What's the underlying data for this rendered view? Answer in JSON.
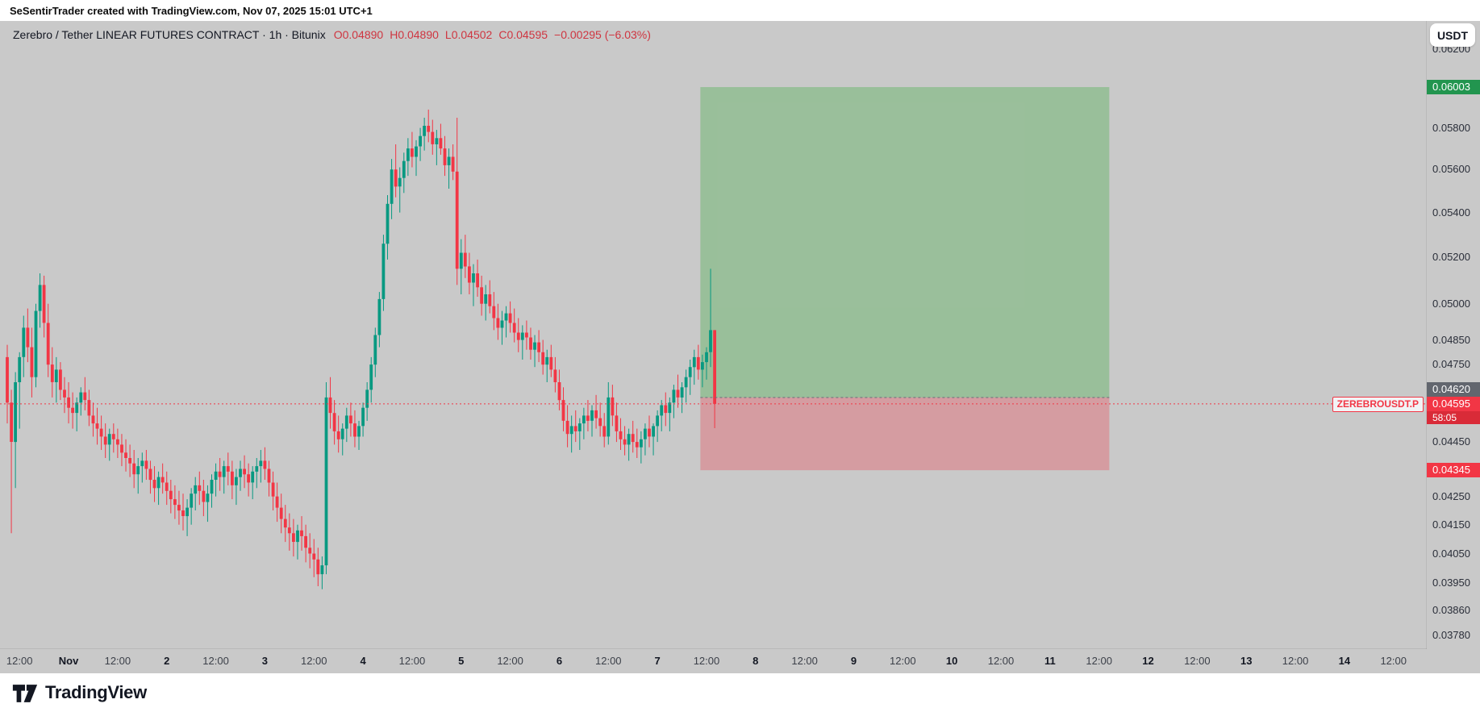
{
  "attribution": "SeSentirTrader created with TradingView.com, Nov 07, 2025 15:01 UTC+1",
  "currency_button": "USDT",
  "footer": {
    "logo_text": "TradingView"
  },
  "legend": {
    "title": "Zerebro / Tether LINEAR FUTURES CONTRACT · 1h · Bitunix",
    "open": "O0.04890",
    "high": "H0.04890",
    "low": "L0.04502",
    "close": "C0.04595",
    "change": "−0.00295 (−6.03%)"
  },
  "price_line": {
    "symbol_label": "ZEREBROUSDT.P",
    "price": 0.04595,
    "price_label": "0.04595",
    "countdown": "58:05"
  },
  "position_tool": {
    "type": "long",
    "target_price": 0.06003,
    "target_label": "0.06003",
    "entry_price": 0.0462,
    "entry_label": "0.04620",
    "stop_price": 0.04345,
    "stop_label": "0.04345",
    "start_index": 169.5,
    "end_index": 269.5
  },
  "colors": {
    "up": "#089981",
    "down": "#f23645",
    "background": "#c9c9c9",
    "profit_fill": "#4caf50",
    "loss_fill": "#f23645",
    "target_badge": "#22954f",
    "entry_badge": "#62666e",
    "stop_badge": "#f23645",
    "current_badge": "#f23645",
    "countdown_badge": "#d92b38",
    "current_line": "#f23645",
    "entry_line": "#6a6d78"
  },
  "chart_data": {
    "type": "candlestick",
    "symbol": "ZEREBROUSDT.P",
    "description": "Zerebro / Tether LINEAR FUTURES CONTRACT",
    "interval": "1h",
    "exchange": "Bitunix",
    "scale": "log",
    "price_range_visible": [
      0.0375,
      0.0625
    ],
    "price_axis_labels": [
      0.062,
      0.058,
      0.056,
      0.054,
      0.052,
      0.05,
      0.0485,
      0.0475,
      0.0445,
      0.0425,
      0.0415,
      0.0405,
      0.0395,
      0.0386,
      0.0378
    ],
    "time_axis_labels": [
      {
        "idx": 3,
        "label": "12:00"
      },
      {
        "idx": 15,
        "label": "Nov",
        "major": true
      },
      {
        "idx": 27,
        "label": "12:00"
      },
      {
        "idx": 39,
        "label": "2",
        "major": true
      },
      {
        "idx": 51,
        "label": "12:00"
      },
      {
        "idx": 63,
        "label": "3",
        "major": true
      },
      {
        "idx": 75,
        "label": "12:00"
      },
      {
        "idx": 87,
        "label": "4",
        "major": true
      },
      {
        "idx": 99,
        "label": "12:00"
      },
      {
        "idx": 111,
        "label": "5",
        "major": true
      },
      {
        "idx": 123,
        "label": "12:00"
      },
      {
        "idx": 135,
        "label": "6",
        "major": true
      },
      {
        "idx": 147,
        "label": "12:00"
      },
      {
        "idx": 159,
        "label": "7",
        "major": true
      },
      {
        "idx": 171,
        "label": "12:00"
      },
      {
        "idx": 183,
        "label": "8",
        "major": true
      },
      {
        "idx": 195,
        "label": "12:00"
      },
      {
        "idx": 207,
        "label": "9",
        "major": true
      },
      {
        "idx": 219,
        "label": "12:00"
      },
      {
        "idx": 231,
        "label": "10",
        "major": true
      },
      {
        "idx": 243,
        "label": "12:00"
      },
      {
        "idx": 255,
        "label": "11",
        "major": true
      },
      {
        "idx": 267,
        "label": "12:00"
      },
      {
        "idx": 279,
        "label": "12",
        "major": true
      },
      {
        "idx": 291,
        "label": "12:00"
      },
      {
        "idx": 303,
        "label": "13",
        "major": true
      },
      {
        "idx": 315,
        "label": "12:00"
      },
      {
        "idx": 327,
        "label": "14",
        "major": true
      },
      {
        "idx": 339,
        "label": "12:00"
      }
    ],
    "candles": [
      [
        0.0478,
        0.0483,
        0.0452,
        0.046
      ],
      [
        0.046,
        0.0465,
        0.0412,
        0.0445
      ],
      [
        0.0445,
        0.0472,
        0.0428,
        0.0468
      ],
      [
        0.0468,
        0.048,
        0.045,
        0.0478
      ],
      [
        0.0478,
        0.0495,
        0.047,
        0.049
      ],
      [
        0.049,
        0.0498,
        0.0476,
        0.0482
      ],
      [
        0.0482,
        0.049,
        0.0462,
        0.047
      ],
      [
        0.047,
        0.05,
        0.0466,
        0.0497
      ],
      [
        0.0497,
        0.0513,
        0.049,
        0.0508
      ],
      [
        0.0508,
        0.0512,
        0.0486,
        0.0492
      ],
      [
        0.0492,
        0.05,
        0.047,
        0.0475
      ],
      [
        0.0475,
        0.0482,
        0.0462,
        0.0468
      ],
      [
        0.0468,
        0.0478,
        0.046,
        0.0473
      ],
      [
        0.0473,
        0.0476,
        0.0461,
        0.0465
      ],
      [
        0.0465,
        0.047,
        0.0456,
        0.0462
      ],
      [
        0.0462,
        0.0468,
        0.0452,
        0.0458
      ],
      [
        0.0458,
        0.0464,
        0.045,
        0.0456
      ],
      [
        0.0456,
        0.0462,
        0.0449,
        0.046
      ],
      [
        0.046,
        0.0466,
        0.0455,
        0.0464
      ],
      [
        0.0464,
        0.047,
        0.0457,
        0.0461
      ],
      [
        0.0461,
        0.0465,
        0.0451,
        0.0455
      ],
      [
        0.0455,
        0.046,
        0.0447,
        0.0452
      ],
      [
        0.0452,
        0.0458,
        0.0444,
        0.045
      ],
      [
        0.045,
        0.0455,
        0.0442,
        0.0447
      ],
      [
        0.0447,
        0.0452,
        0.0439,
        0.0444
      ],
      [
        0.0444,
        0.045,
        0.0438,
        0.0448
      ],
      [
        0.0448,
        0.0452,
        0.0441,
        0.0446
      ],
      [
        0.0446,
        0.045,
        0.0439,
        0.0444
      ],
      [
        0.0444,
        0.0448,
        0.0436,
        0.0441
      ],
      [
        0.0441,
        0.0446,
        0.0434,
        0.0439
      ],
      [
        0.0439,
        0.0444,
        0.0432,
        0.0437
      ],
      [
        0.0437,
        0.0442,
        0.0428,
        0.0433
      ],
      [
        0.0433,
        0.0439,
        0.0426,
        0.0436
      ],
      [
        0.0436,
        0.0441,
        0.043,
        0.0438
      ],
      [
        0.0438,
        0.0442,
        0.0431,
        0.0435
      ],
      [
        0.0435,
        0.0438,
        0.0426,
        0.0431
      ],
      [
        0.0431,
        0.0436,
        0.0423,
        0.0428
      ],
      [
        0.0428,
        0.0434,
        0.0422,
        0.0432
      ],
      [
        0.0432,
        0.0437,
        0.0426,
        0.043
      ],
      [
        0.043,
        0.0434,
        0.0422,
        0.0427
      ],
      [
        0.0427,
        0.0431,
        0.0419,
        0.0424
      ],
      [
        0.0424,
        0.0429,
        0.0417,
        0.0422
      ],
      [
        0.0422,
        0.0427,
        0.0415,
        0.042
      ],
      [
        0.042,
        0.0426,
        0.0413,
        0.0418
      ],
      [
        0.0418,
        0.0424,
        0.0411,
        0.0421
      ],
      [
        0.0421,
        0.0428,
        0.0415,
        0.0426
      ],
      [
        0.0426,
        0.0432,
        0.042,
        0.0429
      ],
      [
        0.0429,
        0.0434,
        0.0422,
        0.0427
      ],
      [
        0.0427,
        0.0431,
        0.0418,
        0.0423
      ],
      [
        0.0423,
        0.0429,
        0.0416,
        0.0426
      ],
      [
        0.0426,
        0.0433,
        0.0421,
        0.0431
      ],
      [
        0.0431,
        0.0437,
        0.0425,
        0.0434
      ],
      [
        0.0434,
        0.0439,
        0.0427,
        0.0432
      ],
      [
        0.0432,
        0.0438,
        0.0426,
        0.0436
      ],
      [
        0.0436,
        0.0441,
        0.0429,
        0.0434
      ],
      [
        0.0434,
        0.0438,
        0.0424,
        0.0429
      ],
      [
        0.0429,
        0.0435,
        0.0422,
        0.0432
      ],
      [
        0.0432,
        0.0438,
        0.0427,
        0.0435
      ],
      [
        0.0435,
        0.044,
        0.0428,
        0.0433
      ],
      [
        0.0433,
        0.0437,
        0.0425,
        0.043
      ],
      [
        0.043,
        0.0436,
        0.0424,
        0.0434
      ],
      [
        0.0434,
        0.0439,
        0.0428,
        0.0436
      ],
      [
        0.0436,
        0.0442,
        0.043,
        0.0438
      ],
      [
        0.0438,
        0.0443,
        0.0431,
        0.0435
      ],
      [
        0.0435,
        0.0438,
        0.0425,
        0.043
      ],
      [
        0.043,
        0.0434,
        0.042,
        0.0425
      ],
      [
        0.0425,
        0.043,
        0.0416,
        0.0421
      ],
      [
        0.0421,
        0.0426,
        0.0412,
        0.0417
      ],
      [
        0.0417,
        0.0422,
        0.0409,
        0.0414
      ],
      [
        0.0414,
        0.0419,
        0.0406,
        0.0412
      ],
      [
        0.0412,
        0.0417,
        0.0404,
        0.0409
      ],
      [
        0.0409,
        0.0415,
        0.0403,
        0.0413
      ],
      [
        0.0413,
        0.0418,
        0.0406,
        0.0411
      ],
      [
        0.0411,
        0.0415,
        0.0402,
        0.0407
      ],
      [
        0.0407,
        0.0412,
        0.04,
        0.0405
      ],
      [
        0.0405,
        0.041,
        0.0397,
        0.0403
      ],
      [
        0.0403,
        0.0407,
        0.0394,
        0.0398
      ],
      [
        0.0398,
        0.0404,
        0.0393,
        0.0401
      ],
      [
        0.0401,
        0.0468,
        0.0398,
        0.0462
      ],
      [
        0.0462,
        0.047,
        0.045,
        0.0456
      ],
      [
        0.0456,
        0.0461,
        0.0444,
        0.0449
      ],
      [
        0.0449,
        0.0455,
        0.0441,
        0.0446
      ],
      [
        0.0446,
        0.0452,
        0.044,
        0.045
      ],
      [
        0.045,
        0.0458,
        0.0445,
        0.0455
      ],
      [
        0.0455,
        0.046,
        0.0447,
        0.0452
      ],
      [
        0.0452,
        0.0457,
        0.0443,
        0.0447
      ],
      [
        0.0447,
        0.0453,
        0.0442,
        0.0451
      ],
      [
        0.0451,
        0.046,
        0.0447,
        0.0458
      ],
      [
        0.0458,
        0.0468,
        0.0453,
        0.0465
      ],
      [
        0.0465,
        0.0478,
        0.046,
        0.0475
      ],
      [
        0.0475,
        0.049,
        0.047,
        0.0487
      ],
      [
        0.0487,
        0.0505,
        0.0482,
        0.0502
      ],
      [
        0.0502,
        0.053,
        0.0497,
        0.0526
      ],
      [
        0.0526,
        0.0548,
        0.0519,
        0.0544
      ],
      [
        0.0544,
        0.0565,
        0.0537,
        0.056
      ],
      [
        0.056,
        0.0572,
        0.0547,
        0.0552
      ],
      [
        0.0552,
        0.0561,
        0.054,
        0.0556
      ],
      [
        0.0556,
        0.0568,
        0.0549,
        0.0564
      ],
      [
        0.0564,
        0.0575,
        0.0557,
        0.057
      ],
      [
        0.057,
        0.0578,
        0.0561,
        0.0566
      ],
      [
        0.0566,
        0.0574,
        0.0557,
        0.0571
      ],
      [
        0.0571,
        0.058,
        0.0564,
        0.0576
      ],
      [
        0.0576,
        0.0585,
        0.0569,
        0.0581
      ],
      [
        0.0581,
        0.0589,
        0.0573,
        0.0578
      ],
      [
        0.0578,
        0.0584,
        0.0567,
        0.0572
      ],
      [
        0.0572,
        0.0579,
        0.0562,
        0.0575
      ],
      [
        0.0575,
        0.0582,
        0.0567,
        0.057
      ],
      [
        0.057,
        0.0576,
        0.0557,
        0.0562
      ],
      [
        0.0562,
        0.057,
        0.0551,
        0.0566
      ],
      [
        0.0566,
        0.0572,
        0.0555,
        0.0559
      ],
      [
        0.0559,
        0.0585,
        0.0508,
        0.0515
      ],
      [
        0.0515,
        0.0528,
        0.0504,
        0.0522
      ],
      [
        0.0522,
        0.053,
        0.0511,
        0.0516
      ],
      [
        0.0516,
        0.0522,
        0.0504,
        0.0509
      ],
      [
        0.0509,
        0.0517,
        0.0499,
        0.0513
      ],
      [
        0.0513,
        0.0519,
        0.0503,
        0.0507
      ],
      [
        0.0507,
        0.0512,
        0.0495,
        0.05
      ],
      [
        0.05,
        0.0508,
        0.0493,
        0.0504
      ],
      [
        0.0504,
        0.051,
        0.0496,
        0.0499
      ],
      [
        0.0499,
        0.0505,
        0.0489,
        0.0494
      ],
      [
        0.0494,
        0.05,
        0.0485,
        0.049
      ],
      [
        0.049,
        0.0497,
        0.0483,
        0.0493
      ],
      [
        0.0493,
        0.0499,
        0.0486,
        0.0496
      ],
      [
        0.0496,
        0.0501,
        0.0488,
        0.0492
      ],
      [
        0.0492,
        0.0498,
        0.0484,
        0.0488
      ],
      [
        0.0488,
        0.0494,
        0.048,
        0.0485
      ],
      [
        0.0485,
        0.0491,
        0.0477,
        0.0488
      ],
      [
        0.0488,
        0.0493,
        0.0481,
        0.0486
      ],
      [
        0.0486,
        0.049,
        0.0477,
        0.0481
      ],
      [
        0.0481,
        0.0487,
        0.0474,
        0.0484
      ],
      [
        0.0484,
        0.0489,
        0.0476,
        0.048
      ],
      [
        0.048,
        0.0485,
        0.0471,
        0.0475
      ],
      [
        0.0475,
        0.0481,
        0.0468,
        0.0478
      ],
      [
        0.0478,
        0.0483,
        0.047,
        0.0473
      ],
      [
        0.0473,
        0.0478,
        0.0464,
        0.0468
      ],
      [
        0.0468,
        0.0473,
        0.0457,
        0.0461
      ],
      [
        0.0461,
        0.0466,
        0.0449,
        0.0453
      ],
      [
        0.0453,
        0.0459,
        0.0443,
        0.0448
      ],
      [
        0.0448,
        0.0455,
        0.0441,
        0.0451
      ],
      [
        0.0451,
        0.0457,
        0.0445,
        0.0449
      ],
      [
        0.0449,
        0.0454,
        0.0442,
        0.0452
      ],
      [
        0.0452,
        0.0458,
        0.0446,
        0.0455
      ],
      [
        0.0455,
        0.0461,
        0.0449,
        0.0453
      ],
      [
        0.0453,
        0.0459,
        0.0447,
        0.0457
      ],
      [
        0.0457,
        0.0463,
        0.045,
        0.0454
      ],
      [
        0.0454,
        0.046,
        0.0447,
        0.0451
      ],
      [
        0.0451,
        0.0456,
        0.0443,
        0.0447
      ],
      [
        0.0447,
        0.0468,
        0.0444,
        0.0462
      ],
      [
        0.0462,
        0.0467,
        0.0451,
        0.0455
      ],
      [
        0.0455,
        0.046,
        0.0445,
        0.0449
      ],
      [
        0.0449,
        0.0454,
        0.0442,
        0.0446
      ],
      [
        0.0446,
        0.0451,
        0.044,
        0.0444
      ],
      [
        0.0444,
        0.045,
        0.0438,
        0.0448
      ],
      [
        0.0448,
        0.0453,
        0.0441,
        0.0445
      ],
      [
        0.0445,
        0.045,
        0.0439,
        0.0443
      ],
      [
        0.0443,
        0.0449,
        0.0437,
        0.0446
      ],
      [
        0.0446,
        0.0452,
        0.044,
        0.045
      ],
      [
        0.045,
        0.0455,
        0.0443,
        0.0447
      ],
      [
        0.0447,
        0.0452,
        0.044,
        0.0451
      ],
      [
        0.0451,
        0.0457,
        0.0445,
        0.0455
      ],
      [
        0.0455,
        0.0461,
        0.0449,
        0.0459
      ],
      [
        0.0459,
        0.0464,
        0.0451,
        0.0456
      ],
      [
        0.0456,
        0.0462,
        0.0449,
        0.046
      ],
      [
        0.046,
        0.0467,
        0.0454,
        0.0465
      ],
      [
        0.0465,
        0.0471,
        0.0458,
        0.0462
      ],
      [
        0.0462,
        0.0468,
        0.0456,
        0.0466
      ],
      [
        0.0466,
        0.0473,
        0.046,
        0.047
      ],
      [
        0.047,
        0.0477,
        0.0463,
        0.0474
      ],
      [
        0.0474,
        0.0481,
        0.0467,
        0.0478
      ],
      [
        0.0478,
        0.0483,
        0.0469,
        0.0473
      ],
      [
        0.0473,
        0.0479,
        0.0466,
        0.0476
      ],
      [
        0.0476,
        0.0482,
        0.0469,
        0.048
      ],
      [
        0.048,
        0.0515,
        0.0474,
        0.0489
      ],
      [
        0.0489,
        0.0489,
        0.04502,
        0.04595
      ]
    ]
  }
}
